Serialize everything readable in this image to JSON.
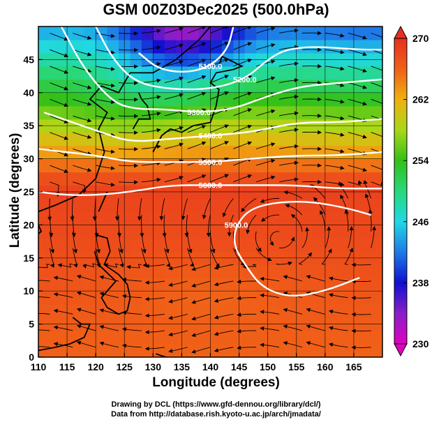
{
  "chart_data": {
    "type": "heatmap",
    "title": "GSM 00Z03Dec2025 (500.0hPa)",
    "xlabel": "Longitude (degrees)",
    "ylabel": "Latitude  (degrees)",
    "xlim": [
      110,
      170
    ],
    "ylim": [
      0,
      50
    ],
    "x_ticks": [
      110,
      115,
      120,
      125,
      130,
      135,
      140,
      145,
      150,
      155,
      160,
      165
    ],
    "y_ticks": [
      0,
      5,
      10,
      15,
      20,
      25,
      30,
      35,
      40,
      45
    ],
    "colorbar": {
      "range": [
        230,
        270
      ],
      "ticks": [
        230,
        238,
        246,
        254,
        262,
        270
      ]
    },
    "contours": [
      {
        "label": "5100.0",
        "points": [
          [
            127.5,
            46
          ],
          [
            131,
            43.5
          ],
          [
            136,
            43
          ],
          [
            140,
            44
          ],
          [
            143,
            46.5
          ],
          [
            144,
            50
          ]
        ]
      },
      {
        "label": "5200.0",
        "points": [
          [
            120,
            50
          ],
          [
            123,
            45
          ],
          [
            127,
            41.5
          ],
          [
            133,
            40.5
          ],
          [
            140,
            40.5
          ],
          [
            146,
            42
          ],
          [
            150,
            45
          ],
          [
            153,
            46.5
          ],
          [
            158,
            47
          ],
          [
            166,
            46.5
          ],
          [
            170,
            46.5
          ]
        ]
      },
      {
        "label": "5300.0",
        "points": [
          [
            114,
            50
          ],
          [
            118,
            43.5
          ],
          [
            123,
            38.5
          ],
          [
            127,
            37.5
          ],
          [
            132,
            37.5
          ],
          [
            138,
            37
          ],
          [
            144,
            37.5
          ],
          [
            150,
            39.5
          ],
          [
            156,
            41
          ],
          [
            163,
            41.5
          ],
          [
            170,
            42
          ]
        ]
      },
      {
        "label": "5400.0",
        "points": [
          [
            111,
            37
          ],
          [
            116,
            35.5
          ],
          [
            121,
            34
          ],
          [
            126,
            32.5
          ],
          [
            133,
            33
          ],
          [
            140,
            33.5
          ],
          [
            147,
            34
          ],
          [
            155,
            35.5
          ],
          [
            162,
            35.5
          ],
          [
            170,
            36
          ]
        ]
      },
      {
        "label": "5500.0",
        "points": [
          [
            110,
            31.5
          ],
          [
            115,
            31
          ],
          [
            120,
            30.5
          ],
          [
            126,
            29.5
          ],
          [
            133,
            29.5
          ],
          [
            140,
            29.5
          ],
          [
            147,
            30
          ],
          [
            155,
            30.5
          ],
          [
            162,
            30.5
          ],
          [
            170,
            31
          ]
        ]
      },
      {
        "label": "5600.0",
        "points": [
          [
            110,
            25
          ],
          [
            115,
            24.5
          ],
          [
            120,
            24.5
          ],
          [
            126,
            25
          ],
          [
            133,
            26
          ],
          [
            140,
            26
          ],
          [
            147,
            26
          ],
          [
            155,
            26
          ],
          [
            162,
            25.5
          ],
          [
            170,
            25.5
          ]
        ]
      },
      {
        "label": "5900.0",
        "points": [
          [
            166,
            12
          ],
          [
            160,
            10
          ],
          [
            154,
            9
          ],
          [
            149,
            10.5
          ],
          [
            146,
            14
          ],
          [
            144,
            17
          ],
          [
            144.5,
            20
          ],
          [
            147,
            22.5
          ],
          [
            152,
            23.5
          ],
          [
            158,
            23.5
          ],
          [
            164,
            22.5
          ],
          [
            168,
            21.5
          ]
        ]
      }
    ],
    "annotations": [
      "5100.0",
      "5200.0",
      "5300.0",
      "5400.0",
      "5500.0",
      "5600.0",
      "5900.0"
    ]
  },
  "credits": {
    "line1": "Drawing by DCL (https://www.gfd-dennou.org/library/dcl/)",
    "line2": "Data from http://database.rish.kyoto-u.ac.jp/arch/jmadata/"
  }
}
